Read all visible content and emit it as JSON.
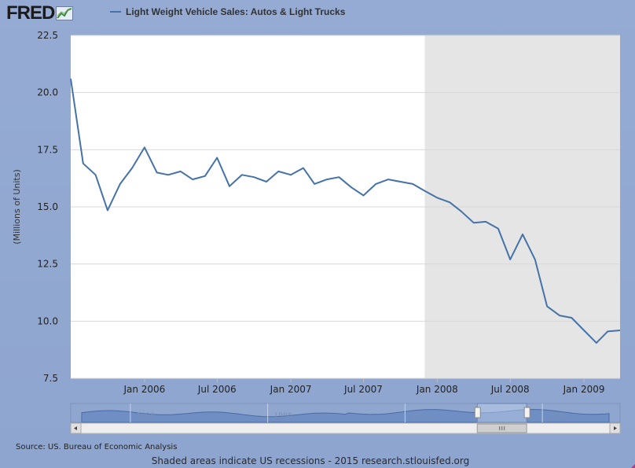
{
  "header": {
    "logo_text": "FRED",
    "logo_icon": "line-chart-icon"
  },
  "source_label": "Source: US. Bureau of Economic Analysis",
  "footer_note": "Shaded areas indicate US recessions - 2015 research.stlouisfed.org",
  "colors": {
    "series_line": "#4572a7",
    "recession_shade": "#e5e5e5",
    "plot_bg": "#ffffff",
    "page_bg": "#8fa6cf"
  },
  "chart_data": {
    "type": "line",
    "title": "",
    "xlabel": "",
    "ylabel": "(Millions of Units)",
    "ylim": [
      7.5,
      22.5
    ],
    "xlim": [
      "2005-07-01",
      "2009-04-01"
    ],
    "yticks": [
      "7.5",
      "10.0",
      "12.5",
      "15.0",
      "17.5",
      "20.0",
      "22.5"
    ],
    "xticks": [
      {
        "label": "Jan 2006",
        "date": "2006-01-01"
      },
      {
        "label": "Jul 2006",
        "date": "2006-07-01"
      },
      {
        "label": "Jan 2007",
        "date": "2007-01-01"
      },
      {
        "label": "Jul 2007",
        "date": "2007-07-01"
      },
      {
        "label": "Jan 2008",
        "date": "2008-01-01"
      },
      {
        "label": "Jul 2008",
        "date": "2008-07-01"
      },
      {
        "label": "Jan 2009",
        "date": "2009-01-01"
      }
    ],
    "grid": true,
    "legend_position": "top",
    "recession_shading": [
      {
        "start": "2007-12-01",
        "end": "2009-04-01"
      }
    ],
    "series": [
      {
        "name": "Light Weight Vehicle Sales: Autos & Light Trucks",
        "x": [
          "2005-07-01",
          "2005-08-01",
          "2005-09-01",
          "2005-10-01",
          "2005-11-01",
          "2005-12-01",
          "2006-01-01",
          "2006-02-01",
          "2006-03-01",
          "2006-04-01",
          "2006-05-01",
          "2006-06-01",
          "2006-07-01",
          "2006-08-01",
          "2006-09-01",
          "2006-10-01",
          "2006-11-01",
          "2006-12-01",
          "2007-01-01",
          "2007-02-01",
          "2007-03-01",
          "2007-04-01",
          "2007-05-01",
          "2007-06-01",
          "2007-07-01",
          "2007-08-01",
          "2007-09-01",
          "2007-10-01",
          "2007-11-01",
          "2007-12-01",
          "2008-01-01",
          "2008-02-01",
          "2008-03-01",
          "2008-04-01",
          "2008-05-01",
          "2008-06-01",
          "2008-07-01",
          "2008-08-01",
          "2008-09-01",
          "2008-10-01",
          "2008-11-01",
          "2008-12-01",
          "2009-01-01",
          "2009-02-01",
          "2009-03-01",
          "2009-04-01"
        ],
        "values": [
          20.6,
          16.9,
          16.4,
          14.85,
          16.0,
          16.7,
          17.6,
          16.5,
          16.4,
          16.55,
          16.2,
          16.35,
          17.15,
          15.9,
          16.4,
          16.3,
          16.1,
          16.55,
          16.4,
          16.7,
          16.0,
          16.2,
          16.3,
          15.85,
          15.5,
          16.0,
          16.2,
          16.1,
          16.0,
          15.7,
          15.4,
          15.2,
          14.8,
          14.3,
          14.35,
          14.05,
          12.7,
          13.8,
          12.7,
          10.65,
          10.25,
          10.15,
          9.6,
          9.05,
          9.55,
          9.6
        ]
      }
    ]
  },
  "navigator": {
    "labels": [
      "1988",
      "1998",
      "2000",
      "2010"
    ],
    "window_start": 0.74,
    "window_end": 0.83
  }
}
